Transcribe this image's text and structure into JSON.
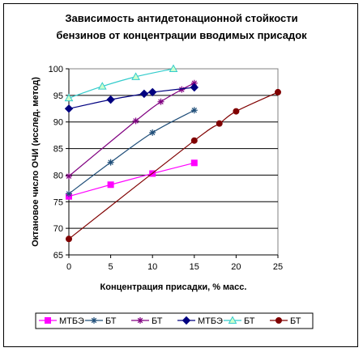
{
  "chart_data": {
    "type": "line",
    "title_lines": [
      "Зависимость антидетонационной стойкости",
      "бензинов от концентрации вводимых присадок"
    ],
    "xlabel": "Концентрация присадки, % масс.",
    "ylabel": "Октановое число ОЧИ (исслед. метод)",
    "xlim": [
      0,
      25
    ],
    "ylim": [
      65,
      100
    ],
    "x_ticks": [
      0,
      5,
      10,
      15,
      20,
      25
    ],
    "y_ticks": [
      65,
      70,
      75,
      80,
      85,
      90,
      95,
      100
    ],
    "grid": "horizontal",
    "legend_position": "bottom",
    "series": [
      {
        "name": "МТБЭ",
        "color": "#ff00ff",
        "marker": "square",
        "x": [
          0,
          5,
          10,
          15
        ],
        "y": [
          76,
          78.2,
          80.3,
          82.3
        ]
      },
      {
        "name": "БТ",
        "color": "#1f4e79",
        "marker": "star",
        "x": [
          0,
          5,
          10,
          15
        ],
        "y": [
          76.5,
          82.4,
          88,
          92.2
        ]
      },
      {
        "name": "БТ",
        "color": "#800080",
        "marker": "star",
        "x": [
          0,
          8,
          11,
          13.5,
          15
        ],
        "y": [
          79.8,
          90.2,
          93.8,
          96.1,
          97.3
        ]
      },
      {
        "name": "МТБЭ",
        "color": "#000080",
        "marker": "diamond",
        "x": [
          0,
          5,
          9,
          10,
          15
        ],
        "y": [
          92.5,
          94.2,
          95.3,
          95.6,
          96.5
        ]
      },
      {
        "name": "БТ",
        "color": "#33cccc",
        "marker": "triangle",
        "x": [
          0,
          4,
          8,
          12.5
        ],
        "y": [
          94.5,
          96.7,
          98.5,
          100
        ]
      },
      {
        "name": "БТ",
        "color": "#800000",
        "marker": "circle",
        "x": [
          0,
          15,
          18,
          20,
          25
        ],
        "y": [
          68,
          86.5,
          89.7,
          92,
          95.6
        ]
      }
    ]
  }
}
